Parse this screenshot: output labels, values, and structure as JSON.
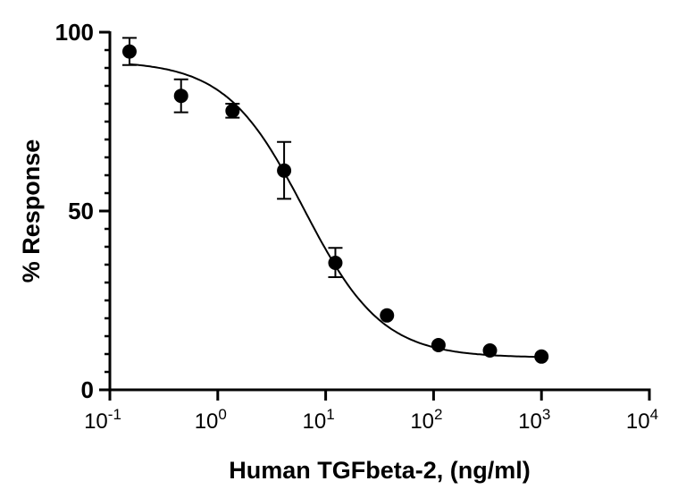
{
  "chart_data": {
    "type": "scatter",
    "title": "",
    "xlabel": "Human TGFbeta-2, (ng/ml)",
    "ylabel": "% Response",
    "x_scale": "log",
    "xlim": [
      0.1,
      10000
    ],
    "ylim": [
      0,
      100
    ],
    "x_ticks": [
      {
        "base": "10",
        "exp": "-1",
        "value": 0.1
      },
      {
        "base": "10",
        "exp": "0",
        "value": 1
      },
      {
        "base": "10",
        "exp": "1",
        "value": 10
      },
      {
        "base": "10",
        "exp": "2",
        "value": 100
      },
      {
        "base": "10",
        "exp": "3",
        "value": 1000
      },
      {
        "base": "10",
        "exp": "4",
        "value": 10000
      }
    ],
    "y_ticks": [
      "0",
      "50",
      "100"
    ],
    "grid": false,
    "points": [
      {
        "x": 0.152,
        "y": 94.6,
        "err_low": 90.8,
        "err_high": 98.4
      },
      {
        "x": 0.457,
        "y": 82.2,
        "err_low": 77.6,
        "err_high": 86.8
      },
      {
        "x": 1.37,
        "y": 78.0,
        "err_low": 76.1,
        "err_high": 80.0
      },
      {
        "x": 4.12,
        "y": 61.3,
        "err_low": 53.4,
        "err_high": 69.3
      },
      {
        "x": 12.3,
        "y": 35.5,
        "err_low": 31.5,
        "err_high": 39.7
      },
      {
        "x": 37.0,
        "y": 20.8
      },
      {
        "x": 111,
        "y": 12.5
      },
      {
        "x": 333,
        "y": 11.0
      },
      {
        "x": 1000,
        "y": 9.3
      }
    ],
    "fit_curve": {
      "model": "4PL",
      "top": 92,
      "bottom": 9,
      "ic50": 6.3,
      "hill": 1.2,
      "x_range": [
        0.152,
        1000
      ]
    },
    "colors": {
      "marker": "#000000",
      "line": "#000000"
    }
  }
}
